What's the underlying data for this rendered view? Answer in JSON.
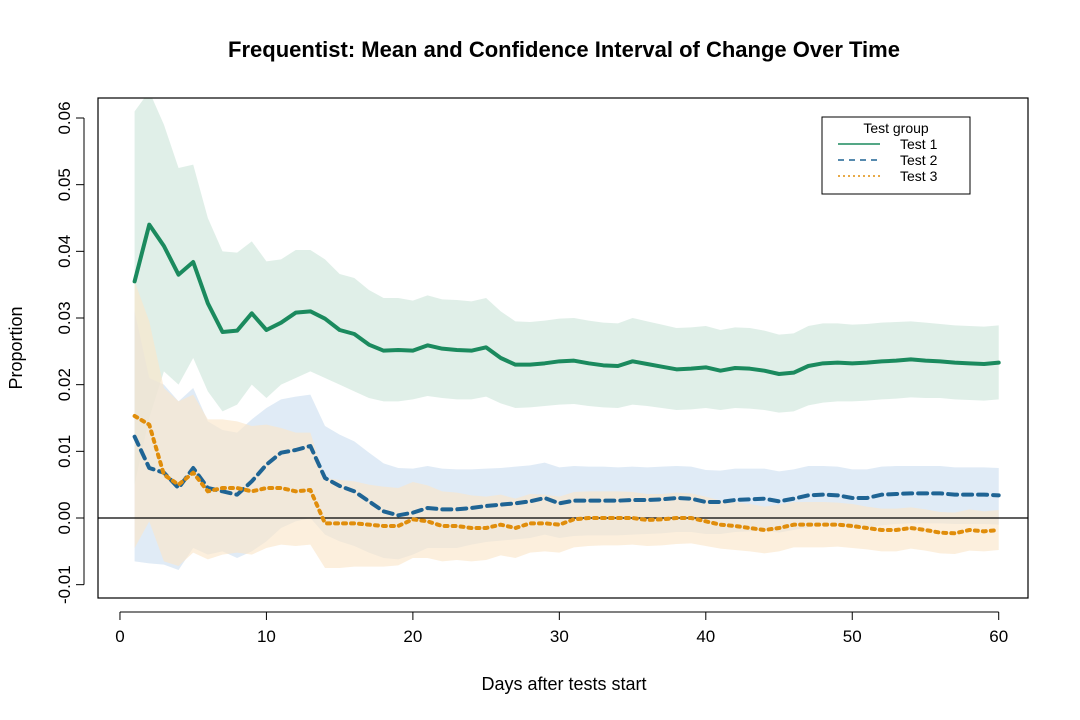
{
  "chart_data": {
    "type": "line",
    "title": "Frequentist: Mean and Confidence Interval of Change Over Time",
    "xlabel": "Days after tests start",
    "ylabel": "Proportion",
    "xlim": [
      -1.5,
      62
    ],
    "ylim": [
      -0.012,
      0.063
    ],
    "x_ticks": [
      0,
      10,
      20,
      30,
      40,
      50,
      60
    ],
    "x_tick_labels": [
      "0",
      "10",
      "20",
      "30",
      "40",
      "50",
      "60"
    ],
    "y_ticks": [
      -0.01,
      0.0,
      0.01,
      0.02,
      0.03,
      0.04,
      0.05,
      0.06
    ],
    "y_tick_labels": [
      "-0.01",
      "0.00",
      "0.01",
      "0.02",
      "0.03",
      "0.04",
      "0.05",
      "0.06"
    ],
    "reference_line_y": 0,
    "grid": false,
    "legend": {
      "title": "Test group",
      "position": "top-right",
      "entries": [
        "Test 1",
        "Test 2",
        "Test 3"
      ]
    },
    "x": [
      1,
      2,
      3,
      4,
      5,
      6,
      7,
      8,
      9,
      10,
      11,
      12,
      13,
      14,
      15,
      16,
      17,
      18,
      19,
      20,
      21,
      22,
      23,
      24,
      25,
      26,
      27,
      28,
      29,
      30,
      31,
      32,
      33,
      34,
      35,
      36,
      37,
      38,
      39,
      40,
      41,
      42,
      43,
      44,
      45,
      46,
      47,
      48,
      49,
      50,
      51,
      52,
      53,
      54,
      55,
      56,
      57,
      58,
      59,
      60
    ],
    "series": [
      {
        "name": "Test 1",
        "color": "#1b8a5e",
        "band_color": "#cfe6dc",
        "line_style": "solid",
        "values": [
          0.0355,
          0.044,
          0.0408,
          0.0365,
          0.0384,
          0.0322,
          0.0279,
          0.0281,
          0.0307,
          0.0282,
          0.0293,
          0.0308,
          0.031,
          0.0299,
          0.0282,
          0.0276,
          0.026,
          0.0251,
          0.0252,
          0.0251,
          0.0259,
          0.0254,
          0.0252,
          0.0251,
          0.0256,
          0.024,
          0.023,
          0.023,
          0.0232,
          0.0235,
          0.0236,
          0.0232,
          0.0229,
          0.0228,
          0.0235,
          0.0231,
          0.0227,
          0.0223,
          0.0224,
          0.0226,
          0.0221,
          0.0225,
          0.0224,
          0.0221,
          0.0216,
          0.0218,
          0.0228,
          0.0232,
          0.0233,
          0.0232,
          0.0233,
          0.0235,
          0.0236,
          0.0238,
          0.0236,
          0.0235,
          0.0233,
          0.0232,
          0.0231,
          0.0233
        ],
        "lower": [
          0.005,
          0.015,
          0.022,
          0.02,
          0.024,
          0.019,
          0.016,
          0.017,
          0.02,
          0.018,
          0.02,
          0.021,
          0.022,
          0.021,
          0.02,
          0.019,
          0.018,
          0.0175,
          0.0175,
          0.0178,
          0.0183,
          0.018,
          0.0178,
          0.0178,
          0.0182,
          0.0172,
          0.0165,
          0.0166,
          0.0168,
          0.017,
          0.0171,
          0.0168,
          0.0166,
          0.0165,
          0.017,
          0.0168,
          0.0165,
          0.0162,
          0.0163,
          0.0165,
          0.0162,
          0.0165,
          0.0164,
          0.0162,
          0.0158,
          0.016,
          0.0169,
          0.0173,
          0.0175,
          0.0175,
          0.0176,
          0.0178,
          0.0179,
          0.0181,
          0.018,
          0.018,
          0.0178,
          0.0177,
          0.0176,
          0.0178
        ],
        "upper": [
          0.061,
          0.064,
          0.059,
          0.0525,
          0.053,
          0.045,
          0.04,
          0.0398,
          0.0415,
          0.0385,
          0.0388,
          0.0402,
          0.0402,
          0.0388,
          0.0366,
          0.036,
          0.0342,
          0.033,
          0.033,
          0.0326,
          0.0334,
          0.0328,
          0.0327,
          0.0325,
          0.033,
          0.031,
          0.0295,
          0.0294,
          0.0296,
          0.0299,
          0.03,
          0.0296,
          0.0293,
          0.0292,
          0.03,
          0.0295,
          0.029,
          0.0285,
          0.0286,
          0.0288,
          0.0282,
          0.0286,
          0.0285,
          0.0281,
          0.0275,
          0.0277,
          0.0288,
          0.0292,
          0.0292,
          0.029,
          0.0291,
          0.0293,
          0.0294,
          0.0295,
          0.0293,
          0.0291,
          0.0289,
          0.0288,
          0.0287,
          0.0289
        ]
      },
      {
        "name": "Test 2",
        "color": "#1f6494",
        "band_color": "#cfe0f1",
        "line_style": "dashed",
        "values": [
          0.0122,
          0.0075,
          0.0068,
          0.0045,
          0.0075,
          0.0045,
          0.004,
          0.0035,
          0.0055,
          0.008,
          0.0098,
          0.0102,
          0.0108,
          0.006,
          0.0048,
          0.004,
          0.0025,
          0.001,
          0.0004,
          0.0008,
          0.0015,
          0.0013,
          0.0013,
          0.0015,
          0.0018,
          0.002,
          0.0022,
          0.0025,
          0.003,
          0.0022,
          0.0026,
          0.0026,
          0.0026,
          0.0026,
          0.0027,
          0.0027,
          0.0028,
          0.003,
          0.0029,
          0.0024,
          0.0024,
          0.0027,
          0.0028,
          0.0029,
          0.0025,
          0.0029,
          0.0034,
          0.0035,
          0.0034,
          0.003,
          0.003,
          0.0035,
          0.0036,
          0.0037,
          0.0037,
          0.0037,
          0.0035,
          0.0035,
          0.0035,
          0.0034
        ],
        "lower": [
          -0.0065,
          -0.0068,
          -0.007,
          -0.0078,
          -0.0045,
          -0.0055,
          -0.005,
          -0.006,
          -0.005,
          -0.0035,
          -0.0015,
          -0.0005,
          0.0,
          -0.0025,
          -0.0035,
          -0.0042,
          -0.0052,
          -0.006,
          -0.0062,
          -0.0055,
          -0.0045,
          -0.0045,
          -0.0045,
          -0.004,
          -0.0036,
          -0.0034,
          -0.0032,
          -0.003,
          -0.0025,
          -0.003,
          -0.0027,
          -0.0026,
          -0.0026,
          -0.0026,
          -0.0025,
          -0.0024,
          -0.0023,
          -0.0021,
          -0.0021,
          -0.0024,
          -0.0024,
          -0.0021,
          -0.002,
          -0.0019,
          -0.0022,
          -0.0018,
          -0.0014,
          -0.0012,
          -0.0012,
          -0.0015,
          -0.0015,
          -0.0011,
          -0.0009,
          -0.0008,
          -0.0008,
          -0.0008,
          -0.0009,
          -0.0009,
          -0.0009,
          -0.001
        ],
        "upper": [
          0.031,
          0.021,
          0.02,
          0.0175,
          0.0195,
          0.0145,
          0.0132,
          0.0128,
          0.0148,
          0.0165,
          0.0178,
          0.0182,
          0.0185,
          0.0138,
          0.0125,
          0.0115,
          0.0098,
          0.0082,
          0.0075,
          0.0074,
          0.0078,
          0.0074,
          0.0073,
          0.0073,
          0.0074,
          0.0075,
          0.0077,
          0.0079,
          0.0083,
          0.0076,
          0.0078,
          0.0077,
          0.0077,
          0.0076,
          0.0077,
          0.0076,
          0.0077,
          0.0078,
          0.0077,
          0.0072,
          0.0071,
          0.0074,
          0.0074,
          0.0074,
          0.007,
          0.0073,
          0.0078,
          0.0078,
          0.0077,
          0.0073,
          0.0073,
          0.0077,
          0.0078,
          0.0078,
          0.0078,
          0.0078,
          0.0076,
          0.0076,
          0.0076,
          0.0075
        ]
      },
      {
        "name": "Test 3",
        "color": "#e08d0b",
        "band_color": "#fbe6cb",
        "line_style": "dotted",
        "values": [
          0.0153,
          0.014,
          0.0065,
          0.005,
          0.0068,
          0.004,
          0.0045,
          0.0045,
          0.004,
          0.0045,
          0.0045,
          0.004,
          0.0042,
          -0.0008,
          -0.0008,
          -0.0008,
          -0.001,
          -0.0012,
          -0.0012,
          -0.0002,
          -0.0005,
          -0.0012,
          -0.0012,
          -0.0015,
          -0.0015,
          -0.001,
          -0.0015,
          -0.0008,
          -0.0008,
          -0.001,
          -0.0002,
          0.0,
          0.0,
          0.0,
          0.0,
          -0.0003,
          -0.0002,
          0.0,
          0.0,
          -0.0005,
          -0.001,
          -0.0012,
          -0.0015,
          -0.0018,
          -0.0015,
          -0.001,
          -0.001,
          -0.001,
          -0.001,
          -0.0012,
          -0.0015,
          -0.0018,
          -0.0018,
          -0.0015,
          -0.0018,
          -0.0022,
          -0.0023,
          -0.0018,
          -0.002,
          -0.0018
        ],
        "lower": [
          -0.0045,
          -0.0005,
          -0.0065,
          -0.0072,
          -0.0052,
          -0.0062,
          -0.0055,
          -0.0052,
          -0.0055,
          -0.0045,
          -0.004,
          -0.0042,
          -0.004,
          -0.0075,
          -0.0075,
          -0.0073,
          -0.0073,
          -0.0073,
          -0.0071,
          -0.006,
          -0.006,
          -0.0065,
          -0.0063,
          -0.0065,
          -0.0063,
          -0.0056,
          -0.006,
          -0.0052,
          -0.005,
          -0.0052,
          -0.0044,
          -0.0042,
          -0.0041,
          -0.0041,
          -0.004,
          -0.0042,
          -0.0041,
          -0.0039,
          -0.0038,
          -0.0042,
          -0.0046,
          -0.0048,
          -0.005,
          -0.0053,
          -0.005,
          -0.0044,
          -0.0044,
          -0.0044,
          -0.0043,
          -0.0045,
          -0.0047,
          -0.005,
          -0.005,
          -0.0046,
          -0.0049,
          -0.0053,
          -0.0054,
          -0.0049,
          -0.005,
          -0.0048
        ],
        "upper": [
          0.0355,
          0.0295,
          0.0195,
          0.0175,
          0.0185,
          0.0148,
          0.0148,
          0.0145,
          0.0138,
          0.014,
          0.0135,
          0.0128,
          0.0128,
          0.006,
          0.0057,
          0.0055,
          0.005,
          0.0047,
          0.0045,
          0.0054,
          0.0049,
          0.004,
          0.0038,
          0.0034,
          0.0032,
          0.0035,
          0.0029,
          0.0036,
          0.0035,
          0.0032,
          0.0039,
          0.004,
          0.004,
          0.004,
          0.0039,
          0.0036,
          0.0036,
          0.0038,
          0.0037,
          0.0032,
          0.0026,
          0.0024,
          0.0021,
          0.0017,
          0.002,
          0.0024,
          0.0024,
          0.0024,
          0.0023,
          0.0021,
          0.0017,
          0.0014,
          0.0014,
          0.0016,
          0.0013,
          0.0009,
          0.0008,
          0.0013,
          0.001,
          0.0012
        ]
      }
    ]
  }
}
